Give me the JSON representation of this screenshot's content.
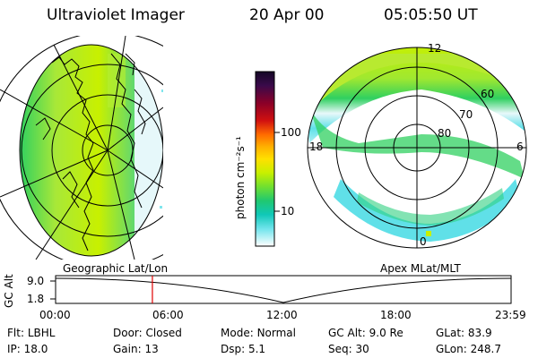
{
  "header": {
    "instrument": "Ultraviolet Imager",
    "date": "20 Apr 00",
    "time": "05:05:50 UT"
  },
  "colorbar": {
    "unit_label": "photon cm⁻²s⁻¹",
    "ticks": [
      "100",
      "10"
    ],
    "colors": [
      "#1a0a2a",
      "#3a0a4a",
      "#7a0030",
      "#b00018",
      "#e03000",
      "#ff7000",
      "#ffb000",
      "#ffe000",
      "#c8f000",
      "#80e020",
      "#30d060",
      "#10c8b0",
      "#60e0e8",
      "#b0f0f4",
      "#ffffff"
    ]
  },
  "left_panel": {
    "label": "Geographic Lat/Lon"
  },
  "right_panel": {
    "label": "Apex MLat/MLT",
    "lat_labels": [
      "60",
      "70",
      "80"
    ],
    "mlt_labels": {
      "top": "12",
      "left": "18",
      "right": "6",
      "bottom": "0"
    }
  },
  "altitude_plot": {
    "ylabel": "GC Alt",
    "yticks": [
      "9.0",
      "1.8"
    ],
    "xticks": [
      "00:00",
      "06:00",
      "12:00",
      "18:00",
      "23:59"
    ],
    "marker_time_hours": 5.1
  },
  "info": {
    "row1": [
      {
        "k": "Flt:",
        "v": "LBHL"
      },
      {
        "k": "Door:",
        "v": "Closed"
      },
      {
        "k": "Mode:",
        "v": "Normal"
      },
      {
        "k": "GC Alt:",
        "v": "9.0 Re"
      },
      {
        "k": "GLat:",
        "v": "83.9"
      }
    ],
    "row2": [
      {
        "k": "IP:",
        "v": "18.0"
      },
      {
        "k": "Gain:",
        "v": "13"
      },
      {
        "k": "Dsp:",
        "v": "5.1"
      },
      {
        "k": "Seq:",
        "v": "30"
      },
      {
        "k": "GLon:",
        "v": "248.7"
      }
    ]
  }
}
